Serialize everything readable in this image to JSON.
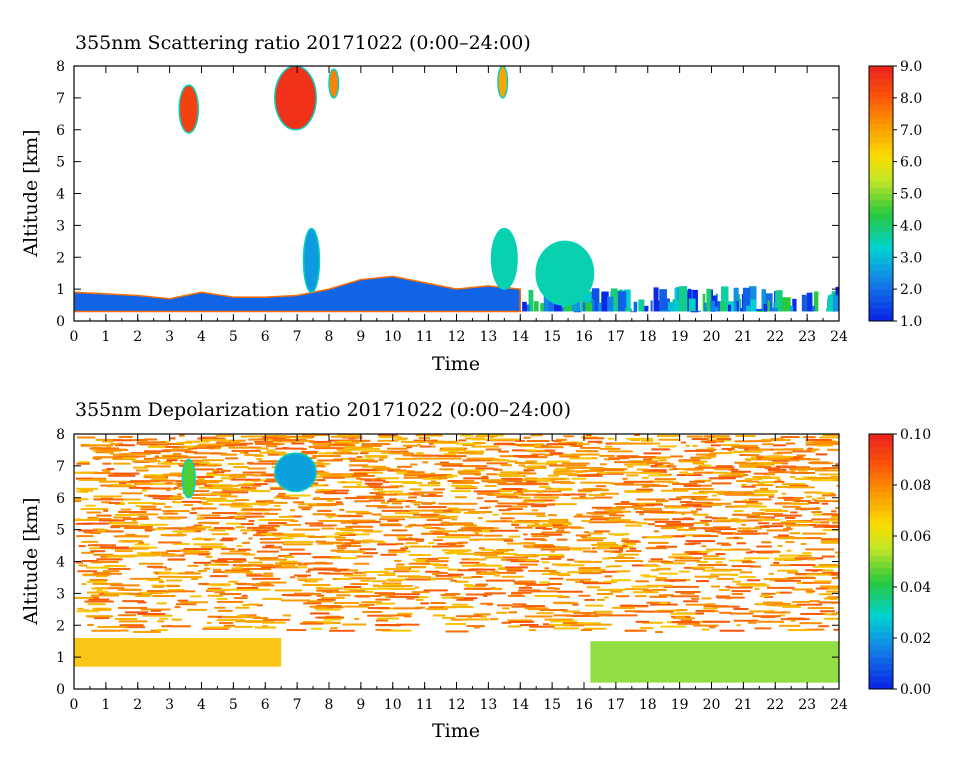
{
  "chart_data": [
    {
      "type": "heatmap",
      "title": "355nm Scattering ratio  20171022 (0:00–24:00)",
      "xlabel": "Time",
      "ylabel": "Altitude [km]",
      "xlim": [
        0,
        24
      ],
      "ylim": [
        0,
        8
      ],
      "x_ticks": [
        "0",
        "1",
        "2",
        "3",
        "4",
        "5",
        "6",
        "7",
        "8",
        "9",
        "10",
        "11",
        "12",
        "13",
        "14",
        "15",
        "16",
        "17",
        "18",
        "19",
        "20",
        "21",
        "22",
        "23",
        "24"
      ],
      "y_ticks": [
        "0",
        "1",
        "2",
        "3",
        "4",
        "5",
        "6",
        "7",
        "8"
      ],
      "colorbar": {
        "min": 1.0,
        "max": 9.0,
        "labels": [
          "9.0",
          "8.0",
          "7.0",
          "6.0",
          "5.0",
          "4.0",
          "3.0",
          "2.0",
          "1.0"
        ],
        "label_values": [
          9.0,
          8.0,
          7.0,
          6.0,
          5.0,
          4.0,
          3.0,
          2.0,
          1.0
        ]
      },
      "features": [
        {
          "kind": "boundary_layer",
          "x_range": [
            0,
            14
          ],
          "base_km": 0.3,
          "top_km": [
            0.9,
            0.85,
            0.8,
            0.7,
            0.9,
            0.75,
            0.75,
            0.8,
            1.0,
            1.3,
            1.4,
            1.2,
            1.0,
            1.1,
            1.0
          ],
          "value": 1.8
        },
        {
          "kind": "broken_clouds",
          "x_range": [
            14,
            24
          ],
          "base_km": 0.3,
          "top_km": 1.1,
          "value": 2.5
        },
        {
          "kind": "cloud",
          "x": [
            3.3,
            3.9
          ],
          "y": [
            5.9,
            7.4
          ],
          "value": 8.5
        },
        {
          "kind": "cloud",
          "x": [
            6.3,
            7.6
          ],
          "y": [
            6.0,
            8.0
          ],
          "value": 8.8
        },
        {
          "kind": "cloud",
          "x": [
            8.0,
            8.3
          ],
          "y": [
            7.0,
            7.9
          ],
          "value": 7.5
        },
        {
          "kind": "cloud",
          "x": [
            13.3,
            13.6
          ],
          "y": [
            7.0,
            8.0
          ],
          "value": 7.0
        },
        {
          "kind": "cloud",
          "x": [
            7.2,
            7.7
          ],
          "y": [
            0.9,
            2.9
          ],
          "value": 2.5
        },
        {
          "kind": "cloud",
          "x": [
            13.1,
            13.9
          ],
          "y": [
            1.0,
            2.9
          ],
          "value": 3.5
        },
        {
          "kind": "cloud",
          "x": [
            14.5,
            16.3
          ],
          "y": [
            0.5,
            2.5
          ],
          "value": 3.5
        }
      ]
    },
    {
      "type": "heatmap",
      "title": "355nm Depolarization ratio  20171022 (0:00–24:00)",
      "xlabel": "Time",
      "ylabel": "Altitude [km]",
      "xlim": [
        0,
        24
      ],
      "ylim": [
        0,
        8
      ],
      "x_ticks": [
        "0",
        "1",
        "2",
        "3",
        "4",
        "5",
        "6",
        "7",
        "8",
        "9",
        "10",
        "11",
        "12",
        "13",
        "14",
        "15",
        "16",
        "17",
        "18",
        "19",
        "20",
        "21",
        "22",
        "23",
        "24"
      ],
      "y_ticks": [
        "0",
        "1",
        "2",
        "3",
        "4",
        "5",
        "6",
        "7",
        "8"
      ],
      "colorbar": {
        "min": 0.0,
        "max": 0.1,
        "labels": [
          "0.10",
          "0.08",
          "0.06",
          "0.04",
          "0.02",
          "0.00"
        ],
        "label_values": [
          0.1,
          0.08,
          0.06,
          0.04,
          0.02,
          0.0
        ]
      },
      "features": [
        {
          "kind": "noise_field",
          "x_range": [
            0,
            24
          ],
          "y_range": [
            1.8,
            8.0
          ],
          "value": 0.09
        },
        {
          "kind": "aerosol_layer",
          "x_range": [
            0,
            6.5
          ],
          "y_range": [
            0.7,
            1.6
          ],
          "value": 0.07
        },
        {
          "kind": "cloud",
          "x": [
            6.3,
            7.6
          ],
          "y": [
            6.2,
            7.4
          ],
          "value": 0.02
        },
        {
          "kind": "cloud",
          "x": [
            3.4,
            3.8
          ],
          "y": [
            6.0,
            7.2
          ],
          "value": 0.045
        },
        {
          "kind": "low_layer",
          "x_range": [
            16.2,
            24
          ],
          "y_range": [
            0.2,
            1.5
          ],
          "value": 0.05
        }
      ]
    }
  ]
}
